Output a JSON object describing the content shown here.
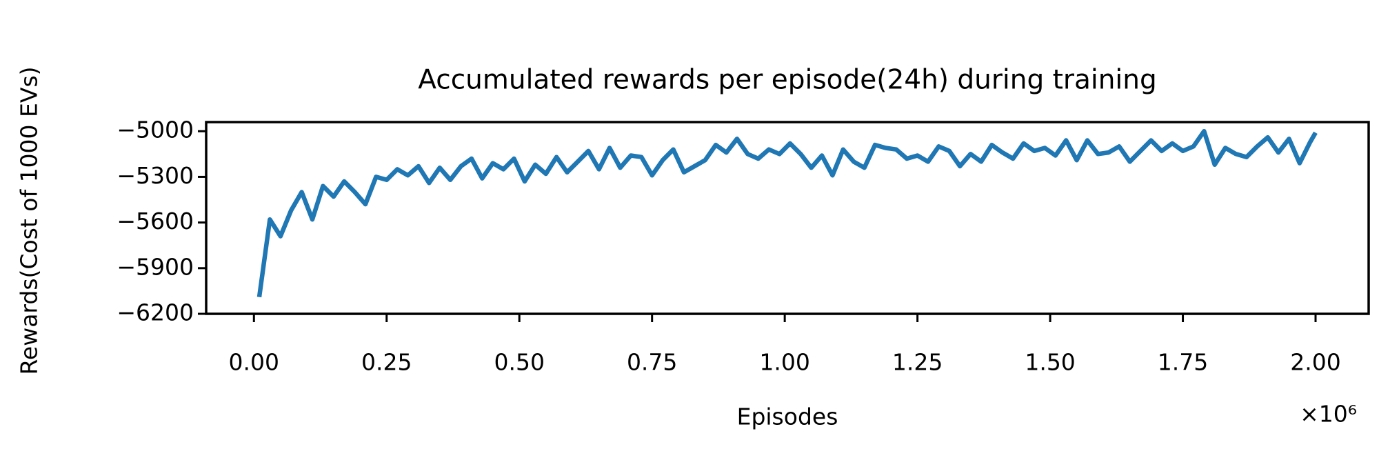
{
  "chart_data": {
    "type": "line",
    "title": "Accumulated rewards per episode(24h) during training",
    "xlabel": "Episodes",
    "ylabel": "Rewards(Cost of 1000 EVs)",
    "x_offset_label": "×10⁶",
    "x": [
      10000,
      30000,
      50000,
      70000,
      90000,
      110000,
      130000,
      150000,
      170000,
      190000,
      210000,
      230000,
      250000,
      270000,
      290000,
      310000,
      330000,
      350000,
      370000,
      390000,
      410000,
      430000,
      450000,
      470000,
      490000,
      510000,
      530000,
      550000,
      570000,
      590000,
      610000,
      630000,
      650000,
      670000,
      690000,
      710000,
      730000,
      750000,
      770000,
      790000,
      810000,
      830000,
      850000,
      870000,
      890000,
      910000,
      930000,
      950000,
      970000,
      990000,
      1010000,
      1030000,
      1050000,
      1070000,
      1090000,
      1110000,
      1130000,
      1150000,
      1170000,
      1190000,
      1210000,
      1230000,
      1250000,
      1270000,
      1290000,
      1310000,
      1330000,
      1350000,
      1370000,
      1390000,
      1410000,
      1430000,
      1450000,
      1470000,
      1490000,
      1510000,
      1530000,
      1550000,
      1570000,
      1590000,
      1610000,
      1630000,
      1650000,
      1670000,
      1690000,
      1710000,
      1730000,
      1750000,
      1770000,
      1790000,
      1810000,
      1830000,
      1850000,
      1870000,
      1890000,
      1910000,
      1930000,
      1950000,
      1970000,
      1990000,
      2000000
    ],
    "series": [
      {
        "name": "rewards",
        "color": "#1f77b4",
        "values": [
          -6090,
          -5580,
          -5690,
          -5520,
          -5400,
          -5580,
          -5360,
          -5430,
          -5330,
          -5400,
          -5480,
          -5300,
          -5320,
          -5250,
          -5290,
          -5230,
          -5340,
          -5240,
          -5320,
          -5230,
          -5180,
          -5310,
          -5210,
          -5250,
          -5180,
          -5330,
          -5220,
          -5280,
          -5170,
          -5270,
          -5200,
          -5130,
          -5250,
          -5110,
          -5240,
          -5160,
          -5170,
          -5290,
          -5190,
          -5120,
          -5270,
          -5230,
          -5190,
          -5090,
          -5140,
          -5050,
          -5150,
          -5180,
          -5120,
          -5150,
          -5080,
          -5150,
          -5240,
          -5160,
          -5290,
          -5120,
          -5200,
          -5240,
          -5090,
          -5110,
          -5120,
          -5180,
          -5160,
          -5200,
          -5100,
          -5130,
          -5230,
          -5150,
          -5200,
          -5090,
          -5140,
          -5180,
          -5080,
          -5130,
          -5110,
          -5160,
          -5060,
          -5190,
          -5060,
          -5150,
          -5140,
          -5100,
          -5200,
          -5130,
          -5060,
          -5130,
          -5080,
          -5130,
          -5100,
          -5000,
          -5220,
          -5110,
          -5150,
          -5170,
          -5100,
          -5040,
          -5140,
          -5050,
          -5210,
          -5070,
          -5010
        ]
      }
    ],
    "xlim": [
      -90000,
      2100000
    ],
    "ylim": [
      -6200,
      -4940
    ],
    "xticks": [
      {
        "value": 0,
        "label": "0.00"
      },
      {
        "value": 250000,
        "label": "0.25"
      },
      {
        "value": 500000,
        "label": "0.50"
      },
      {
        "value": 750000,
        "label": "0.75"
      },
      {
        "value": 1000000,
        "label": "1.00"
      },
      {
        "value": 1250000,
        "label": "1.25"
      },
      {
        "value": 1500000,
        "label": "1.50"
      },
      {
        "value": 1750000,
        "label": "1.75"
      },
      {
        "value": 2000000,
        "label": "2.00"
      }
    ],
    "yticks": [
      {
        "value": -5000,
        "label": "−5000"
      },
      {
        "value": -5300,
        "label": "−5300"
      },
      {
        "value": -5600,
        "label": "−5600"
      },
      {
        "value": -5900,
        "label": "−5900"
      },
      {
        "value": -6200,
        "label": "−6200"
      }
    ],
    "grid": false
  }
}
